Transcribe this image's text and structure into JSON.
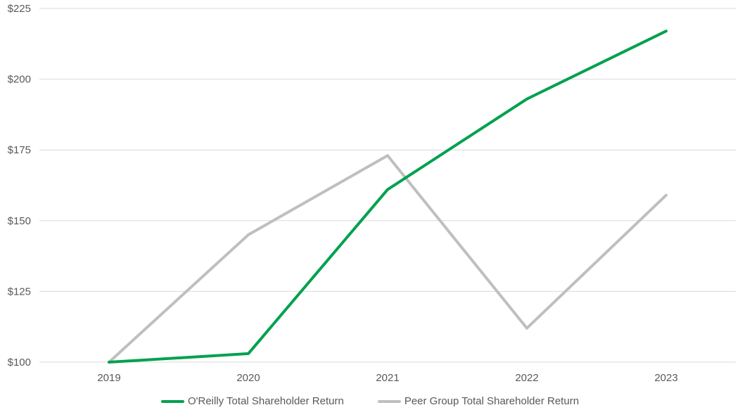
{
  "page": {
    "background_color": "#ffffff",
    "text_color": "#595959"
  },
  "chart_data": {
    "type": "line",
    "title": "",
    "xlabel": "",
    "ylabel": "",
    "categories": [
      "2019",
      "2020",
      "2021",
      "2022",
      "2023"
    ],
    "series": [
      {
        "name": "O'Reilly Total Shareholder Return",
        "color": "#00A14E",
        "values": [
          100,
          103,
          161,
          193,
          217
        ]
      },
      {
        "name": "Peer Group Total Shareholder Return",
        "color": "#BFBFBF",
        "values": [
          100,
          145,
          173,
          112,
          159
        ]
      }
    ],
    "ylim": [
      100,
      225
    ],
    "ytick_step": 25,
    "ytick_prefix": "$",
    "ytick_labels": [
      "$100",
      "$125",
      "$150",
      "$175",
      "$200",
      "$225"
    ],
    "grid": true,
    "gridline_color": "#D9D9D9",
    "axis_text_color": "#595959",
    "legend_position": "bottom"
  }
}
